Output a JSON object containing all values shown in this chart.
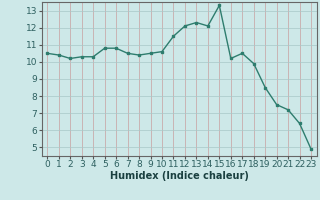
{
  "x": [
    0,
    1,
    2,
    3,
    4,
    5,
    6,
    7,
    8,
    9,
    10,
    11,
    12,
    13,
    14,
    15,
    16,
    17,
    18,
    19,
    20,
    21,
    22,
    23
  ],
  "y": [
    10.5,
    10.4,
    10.2,
    10.3,
    10.3,
    10.8,
    10.8,
    10.5,
    10.4,
    10.5,
    10.6,
    11.5,
    12.1,
    12.3,
    12.1,
    13.3,
    10.2,
    10.5,
    9.9,
    8.5,
    7.5,
    7.2,
    6.4,
    4.9
  ],
  "xlabel": "Humidex (Indice chaleur)",
  "xlim": [
    -0.5,
    23.5
  ],
  "ylim": [
    4.5,
    13.5
  ],
  "yticks": [
    5,
    6,
    7,
    8,
    9,
    10,
    11,
    12,
    13
  ],
  "xticks": [
    0,
    1,
    2,
    3,
    4,
    5,
    6,
    7,
    8,
    9,
    10,
    11,
    12,
    13,
    14,
    15,
    16,
    17,
    18,
    19,
    20,
    21,
    22,
    23
  ],
  "line_color": "#2e7d6e",
  "bg_color": "#cde8e8",
  "grid_color_v": "#c8a8a8",
  "grid_color_h": "#b8d4d4",
  "label_fontsize": 7,
  "tick_fontsize": 6.5
}
